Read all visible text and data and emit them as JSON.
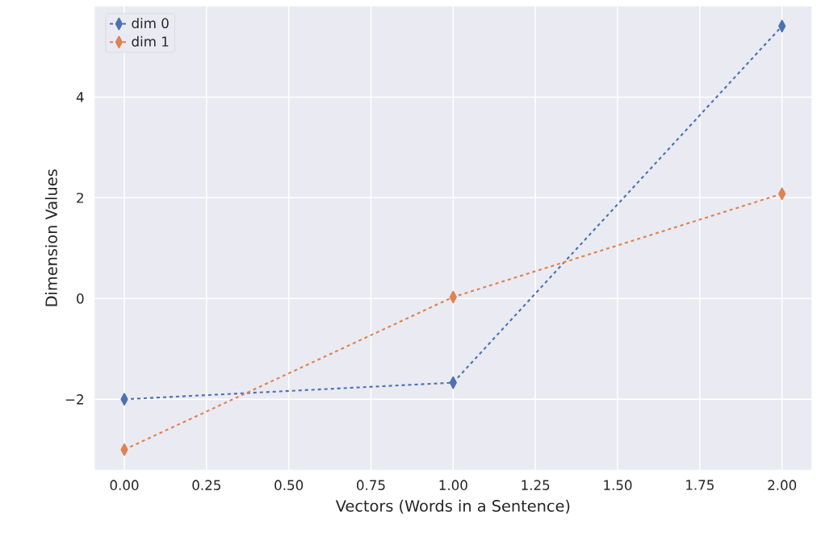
{
  "chart_data": {
    "type": "line",
    "xlabel": "Vectors (Words in a Sentence)",
    "ylabel": "Dimension Values",
    "x": [
      0,
      1,
      2
    ],
    "series": [
      {
        "name": "dim 0",
        "color": "#4c72b0",
        "values": [
          -2.0,
          -1.67,
          5.41
        ]
      },
      {
        "name": "dim 1",
        "color": "#dd8452",
        "values": [
          -3.0,
          0.03,
          2.08
        ]
      }
    ],
    "xlim": [
      -0.09,
      2.09
    ],
    "ylim": [
      -3.4,
      5.8
    ],
    "xticks": [
      {
        "value": 0,
        "label": "0.00"
      },
      {
        "value": 0.25,
        "label": "0.25"
      },
      {
        "value": 0.5,
        "label": "0.50"
      },
      {
        "value": 0.75,
        "label": "0.75"
      },
      {
        "value": 1,
        "label": "1.00"
      },
      {
        "value": 1.25,
        "label": "1.25"
      },
      {
        "value": 1.5,
        "label": "1.50"
      },
      {
        "value": 1.75,
        "label": "1.75"
      },
      {
        "value": 2,
        "label": "2.00"
      }
    ],
    "yticks": [
      {
        "value": -2,
        "label": "−2"
      },
      0,
      2,
      4
    ],
    "grid": true,
    "legend": "top left",
    "marker": "diamond",
    "line_style": "dashed"
  }
}
